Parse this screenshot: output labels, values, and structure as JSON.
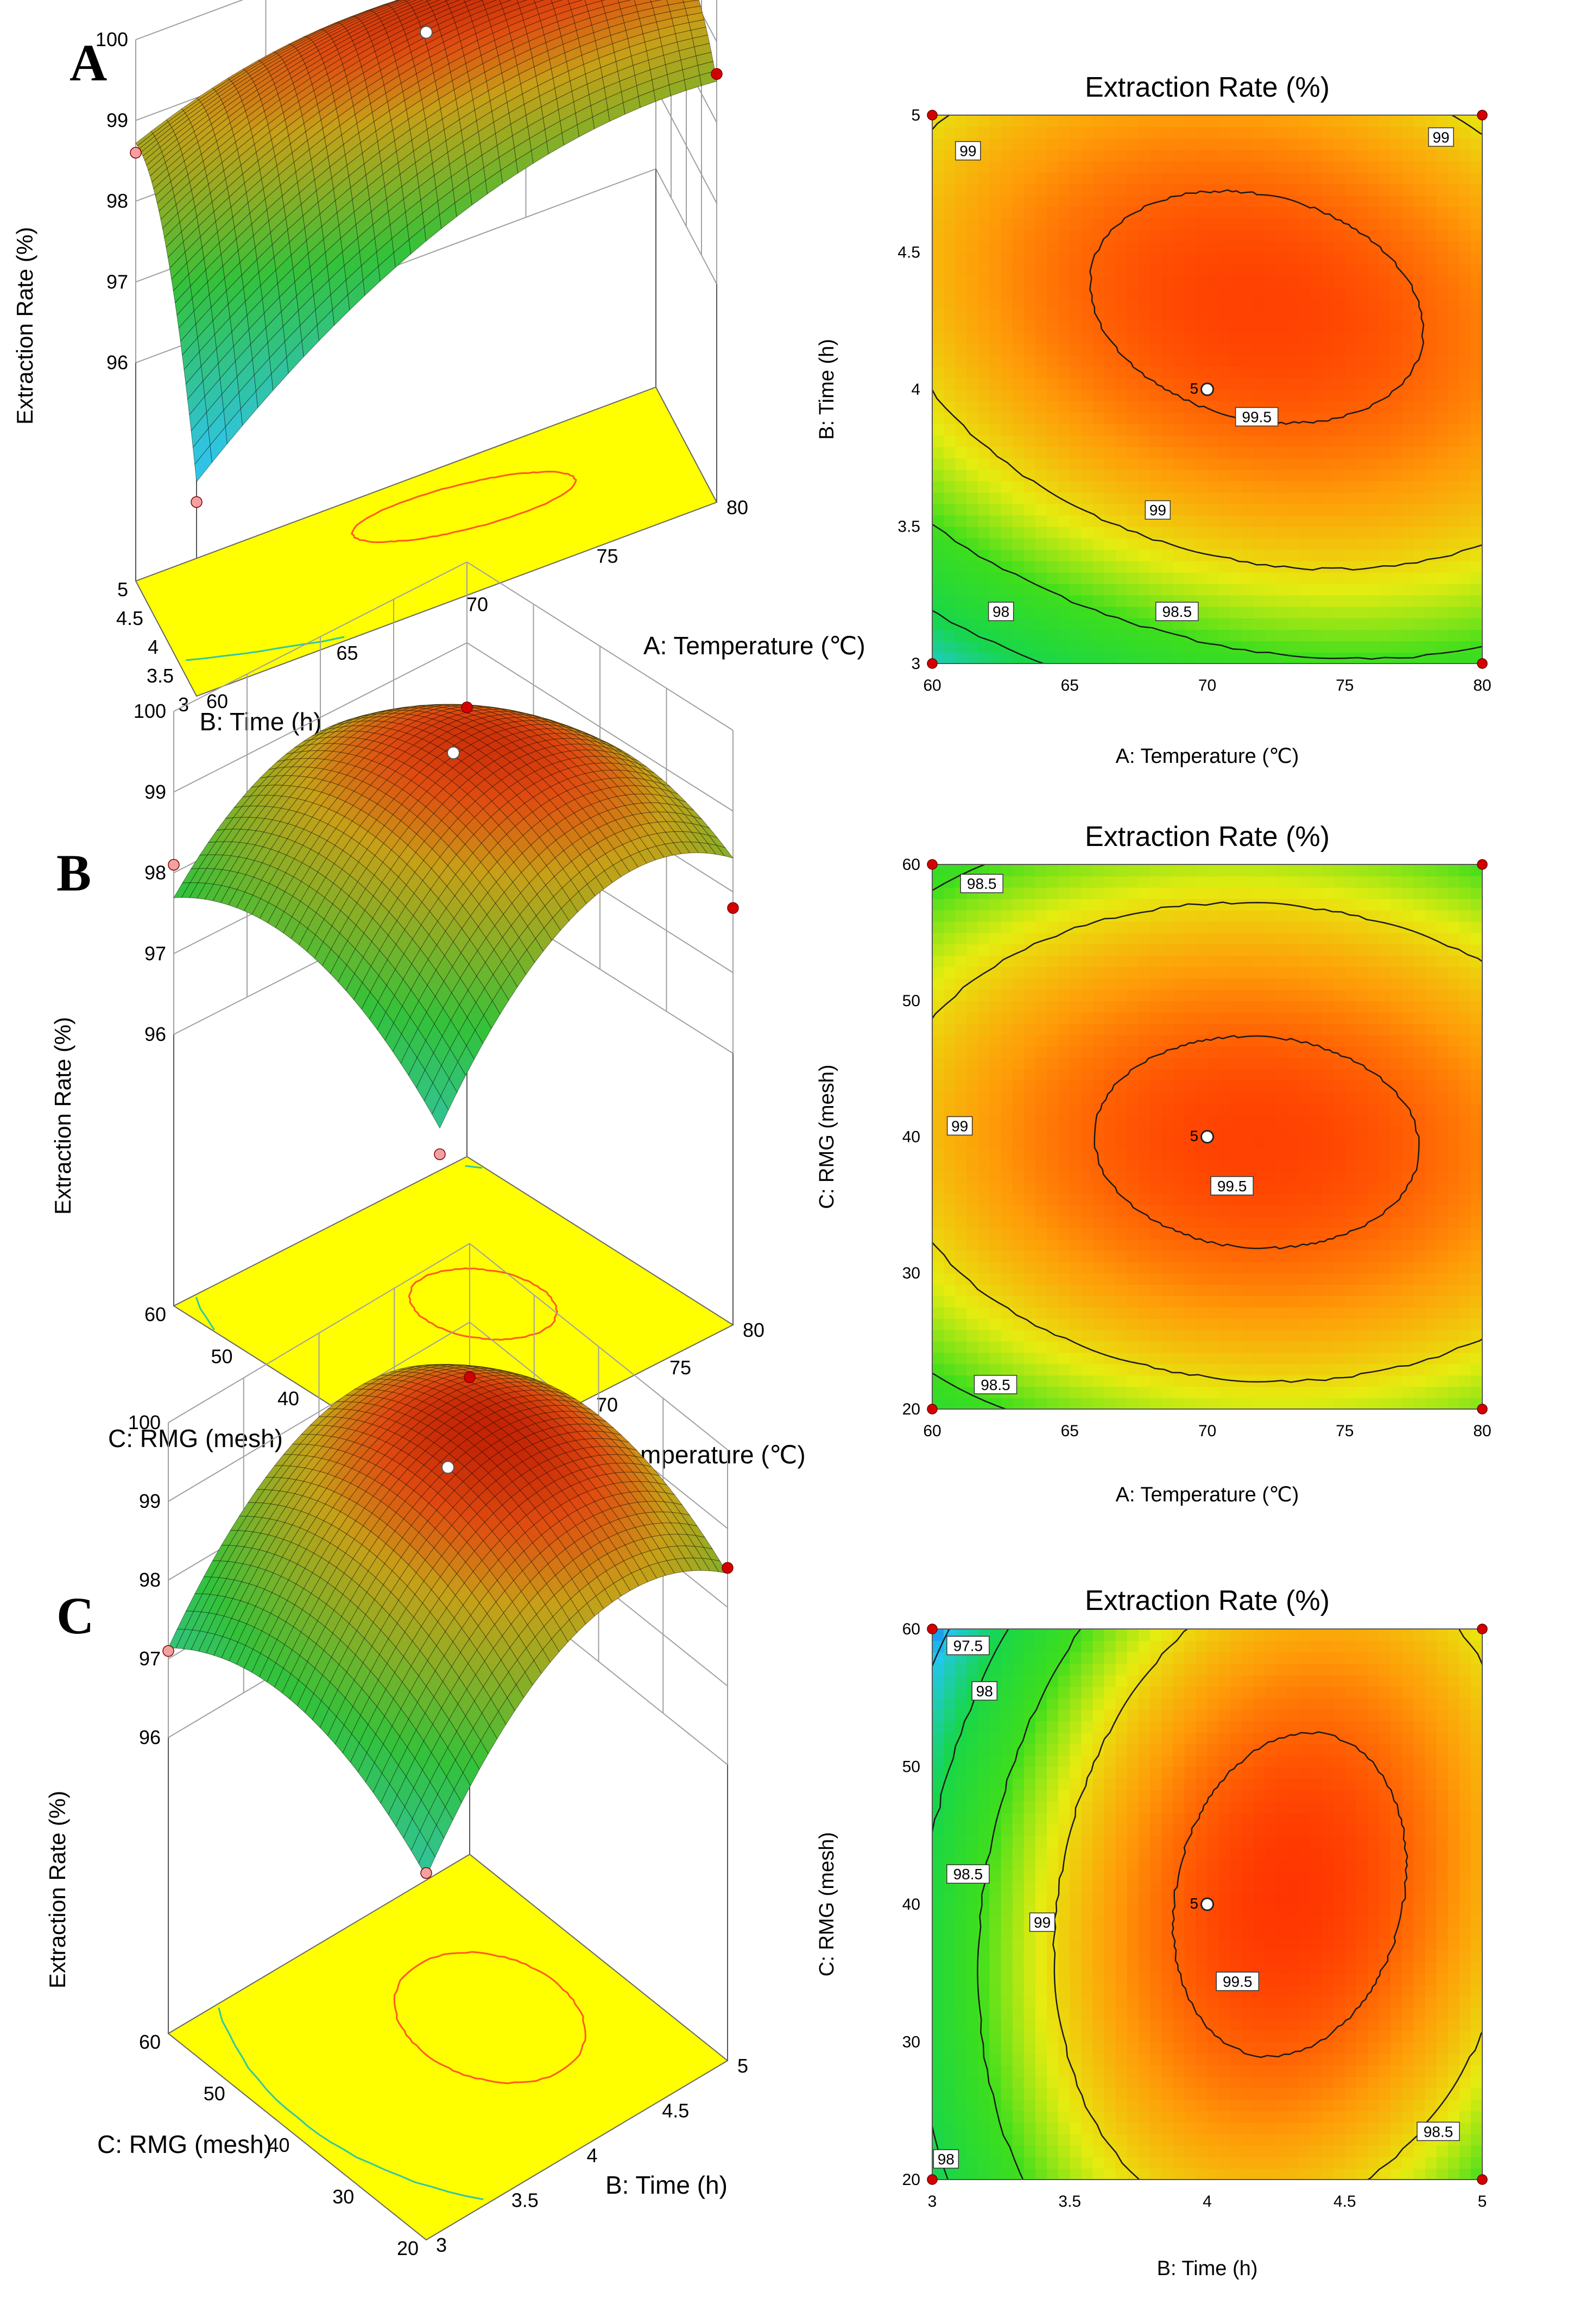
{
  "panels": [
    {
      "letter": "A",
      "id": "A"
    },
    {
      "letter": "B",
      "id": "B"
    },
    {
      "letter": "C",
      "id": "C"
    }
  ],
  "colors": {
    "surface_low": "#2fc4e6",
    "surface_mid": "#33c23a",
    "surface_high": "#e04b10",
    "surface_top": "#b81400",
    "floor": "#ffff00",
    "contour_low": "#00d0e0",
    "contour_high": "#ff5a1a",
    "marker": "#d40000",
    "marker_light": "#f4a0a0",
    "grid": "#a0a0a0"
  },
  "chart_data": [
    {
      "panel": "A",
      "type": "surface",
      "zlabel": "Extraction Rate (%)",
      "zlim": [
        96,
        100
      ],
      "zticks": [
        "96",
        "97",
        "98",
        "99",
        "100"
      ],
      "xlabel": "A: Temperature (℃)",
      "xlim": [
        60,
        80
      ],
      "xticks": [
        "60",
        "65",
        "70",
        "75",
        "80"
      ],
      "ylabel": "B: Time (h)",
      "ylim": [
        3,
        5
      ],
      "yticks": [
        "3",
        "3.5",
        "4",
        "4.5",
        "5"
      ],
      "corner_values": {
        "x0y0": 95.7,
        "x1y0": 98.6,
        "x0y1": 98.6,
        "x1y1": 98.9
      },
      "peak": {
        "x": 71.8,
        "y": 4.3,
        "z": 99.6
      },
      "center_point": {
        "x": 70,
        "y": 4,
        "z": 99.55
      }
    },
    {
      "panel": "A",
      "type": "contour",
      "title": "Extraction Rate (%)",
      "xlabel": "A: Temperature (℃)",
      "xlim": [
        60,
        80
      ],
      "xticks": [
        "60",
        "65",
        "70",
        "75",
        "80"
      ],
      "ylabel": "B: Time (h)",
      "ylim": [
        3,
        5
      ],
      "yticks": [
        "3",
        "3.5",
        "4",
        "4.5",
        "5"
      ],
      "levels": [
        97.5,
        98,
        98.5,
        99,
        99.5
      ],
      "contour_labels": [
        {
          "text": "99",
          "x": 61.3,
          "y": 4.87
        },
        {
          "text": "99",
          "x": 78.5,
          "y": 4.92
        },
        {
          "text": "99.5",
          "x": 71.8,
          "y": 3.9
        },
        {
          "text": "99",
          "x": 68.2,
          "y": 3.56
        },
        {
          "text": "98.5",
          "x": 68.9,
          "y": 3.19
        },
        {
          "text": "98",
          "x": 62.5,
          "y": 3.19
        }
      ],
      "center_point": {
        "x": 70,
        "y": 4,
        "label": "5"
      },
      "design_points": [
        [
          60,
          3
        ],
        [
          80,
          3
        ],
        [
          60,
          5
        ],
        [
          80,
          5
        ]
      ]
    },
    {
      "panel": "B",
      "type": "surface",
      "zlabel": "Extraction Rate (%)",
      "zlim": [
        96,
        100
      ],
      "zticks": [
        "96",
        "97",
        "98",
        "99",
        "100"
      ],
      "xlabel": "A: Temperature (℃)",
      "xlim": [
        60,
        80
      ],
      "xticks": [
        "60",
        "65",
        "70",
        "75",
        "80"
      ],
      "ylabel": "C: RMG (mesh)",
      "ylim": [
        20,
        60
      ],
      "yticks": [
        "20",
        "30",
        "40",
        "50",
        "60"
      ],
      "corner_values": {
        "x0y0": 96.6,
        "x1y0": 97.8,
        "x0y1": 98.1,
        "x1y1": 98.2
      },
      "peak": {
        "x": 71.8,
        "y": 39.5,
        "z": 99.6
      },
      "center_point": {
        "x": 70,
        "y": 40,
        "z": 99.55
      }
    },
    {
      "panel": "B",
      "type": "contour",
      "title": "Extraction Rate (%)",
      "xlabel": "A: Temperature (℃)",
      "xlim": [
        60,
        80
      ],
      "xticks": [
        "60",
        "65",
        "70",
        "75",
        "80"
      ],
      "ylabel": "C: RMG (mesh)",
      "ylim": [
        20,
        60
      ],
      "yticks": [
        "20",
        "30",
        "40",
        "50",
        "60"
      ],
      "levels": [
        98.5,
        99,
        99.5
      ],
      "contour_labels": [
        {
          "text": "98.5",
          "x": 61.8,
          "y": 58.6
        },
        {
          "text": "99",
          "x": 61.0,
          "y": 40.8
        },
        {
          "text": "99.5",
          "x": 70.9,
          "y": 36.4
        },
        {
          "text": "98.5",
          "x": 62.3,
          "y": 21.8
        }
      ],
      "center_point": {
        "x": 70,
        "y": 40,
        "label": "5"
      },
      "design_points": [
        [
          60,
          20
        ],
        [
          80,
          20
        ],
        [
          60,
          60
        ],
        [
          80,
          60
        ]
      ]
    },
    {
      "panel": "C",
      "type": "surface",
      "zlabel": "Extraction Rate (%)",
      "zlim": [
        96,
        100
      ],
      "zticks": [
        "96",
        "97",
        "98",
        "99",
        "100"
      ],
      "xlabel": "B: Time (h)",
      "xlim": [
        3,
        5
      ],
      "xticks": [
        "3",
        "3.5",
        "4",
        "4.5",
        "5"
      ],
      "ylabel": "C: RMG (mesh)",
      "ylim": [
        20,
        60
      ],
      "yticks": [
        "20",
        "30",
        "40",
        "50",
        "60"
      ],
      "corner_values": {
        "x0y0": 96.9,
        "x1y0": 98.5,
        "x0y1": 97.1,
        "x1y1": 98.3
      },
      "peak": {
        "x": 4.3,
        "y": 40.5,
        "z": 99.7
      },
      "center_point": {
        "x": 4,
        "y": 40,
        "z": 99.55
      }
    },
    {
      "panel": "C",
      "type": "contour",
      "title": "Extraction Rate (%)",
      "xlabel": "B: Time (h)",
      "xlim": [
        3,
        5
      ],
      "xticks": [
        "3",
        "3.5",
        "4",
        "4.5",
        "5"
      ],
      "ylabel": "C: RMG (mesh)",
      "ylim": [
        20,
        60
      ],
      "yticks": [
        "20",
        "30",
        "40",
        "50",
        "60"
      ],
      "levels": [
        97.5,
        98,
        98.5,
        99,
        99.5
      ],
      "contour_labels": [
        {
          "text": "97.5",
          "x": 3.13,
          "y": 58.8
        },
        {
          "text": "98",
          "x": 3.19,
          "y": 55.5
        },
        {
          "text": "98.5",
          "x": 3.13,
          "y": 42.2
        },
        {
          "text": "99",
          "x": 3.4,
          "y": 38.7
        },
        {
          "text": "99.5",
          "x": 4.11,
          "y": 34.4
        },
        {
          "text": "98.5",
          "x": 4.84,
          "y": 23.5
        },
        {
          "text": "98",
          "x": 3.05,
          "y": 21.5
        }
      ],
      "center_point": {
        "x": 4,
        "y": 40,
        "label": "5"
      },
      "design_points": [
        [
          3,
          20
        ],
        [
          5,
          20
        ],
        [
          3,
          60
        ],
        [
          5,
          60
        ]
      ]
    }
  ]
}
